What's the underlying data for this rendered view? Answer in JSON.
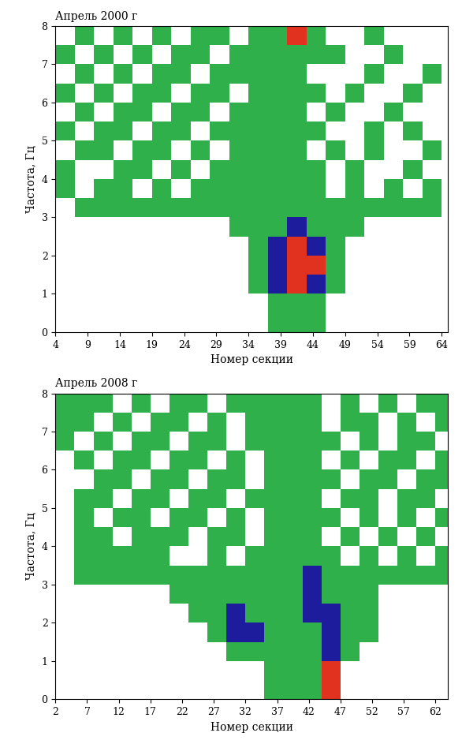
{
  "chart_data": [
    {
      "type": "heatmap",
      "title": "Апрель 2000 г",
      "x_label": "Номер секции",
      "y_label": "Частота, Гц",
      "xlim": [
        4,
        65
      ],
      "ylim": [
        0,
        8
      ],
      "xticks": [
        4,
        9,
        14,
        19,
        24,
        29,
        34,
        39,
        44,
        49,
        54,
        59,
        64
      ],
      "yticks": [
        0,
        1,
        2,
        3,
        4,
        5,
        6,
        7,
        8
      ],
      "grid": false,
      "colors": [
        "#ffffff",
        "#2fb04a",
        "#1c1c9c",
        "#e0321e"
      ],
      "x_edges": [
        4,
        7,
        10,
        13,
        16,
        19,
        22,
        25,
        28,
        31,
        34,
        37,
        40,
        43,
        46,
        49,
        52,
        55,
        58,
        61,
        64
      ],
      "y_edges": [
        0,
        0.5,
        1,
        1.5,
        2,
        2.5,
        3,
        3.5,
        4,
        4.5,
        5,
        5.5,
        6,
        6.5,
        7,
        7.5,
        8
      ],
      "cells": [
        [
          0,
          0,
          0,
          0,
          0,
          0,
          0,
          0,
          0,
          0,
          0,
          1,
          1,
          1,
          0,
          0,
          0,
          0,
          0,
          0
        ],
        [
          0,
          0,
          0,
          0,
          0,
          0,
          0,
          0,
          0,
          0,
          0,
          1,
          1,
          1,
          0,
          0,
          0,
          0,
          0,
          0
        ],
        [
          0,
          0,
          0,
          0,
          0,
          0,
          0,
          0,
          0,
          0,
          1,
          2,
          3,
          2,
          1,
          0,
          0,
          0,
          0,
          0
        ],
        [
          0,
          0,
          0,
          0,
          0,
          0,
          0,
          0,
          0,
          0,
          1,
          2,
          3,
          3,
          1,
          0,
          0,
          0,
          0,
          0
        ],
        [
          0,
          0,
          0,
          0,
          0,
          0,
          0,
          0,
          0,
          0,
          1,
          2,
          3,
          2,
          1,
          0,
          0,
          0,
          0,
          0
        ],
        [
          0,
          0,
          0,
          0,
          0,
          0,
          0,
          0,
          0,
          1,
          1,
          1,
          2,
          1,
          1,
          1,
          0,
          0,
          0,
          0
        ],
        [
          0,
          1,
          1,
          1,
          1,
          1,
          1,
          1,
          1,
          1,
          1,
          1,
          1,
          1,
          1,
          1,
          1,
          1,
          1,
          1
        ],
        [
          1,
          0,
          1,
          1,
          0,
          1,
          0,
          1,
          1,
          1,
          1,
          1,
          1,
          1,
          0,
          1,
          0,
          1,
          0,
          1
        ],
        [
          1,
          0,
          0,
          1,
          1,
          0,
          1,
          0,
          1,
          1,
          1,
          1,
          1,
          1,
          0,
          1,
          0,
          0,
          1,
          0
        ],
        [
          0,
          1,
          1,
          0,
          1,
          1,
          0,
          1,
          0,
          1,
          1,
          1,
          1,
          0,
          1,
          0,
          1,
          0,
          0,
          1
        ],
        [
          1,
          0,
          1,
          1,
          0,
          1,
          1,
          0,
          1,
          1,
          1,
          1,
          1,
          1,
          0,
          0,
          1,
          0,
          1,
          0
        ],
        [
          0,
          1,
          0,
          1,
          1,
          0,
          1,
          1,
          0,
          1,
          1,
          1,
          1,
          0,
          1,
          0,
          0,
          1,
          0,
          0
        ],
        [
          1,
          0,
          1,
          0,
          1,
          1,
          0,
          1,
          1,
          0,
          1,
          1,
          1,
          1,
          0,
          1,
          0,
          0,
          1,
          0
        ],
        [
          0,
          1,
          0,
          1,
          0,
          1,
          1,
          0,
          1,
          1,
          1,
          1,
          1,
          0,
          0,
          0,
          1,
          0,
          0,
          1
        ],
        [
          1,
          0,
          1,
          0,
          1,
          0,
          1,
          1,
          0,
          1,
          1,
          1,
          1,
          1,
          1,
          0,
          0,
          1,
          0,
          0
        ],
        [
          0,
          1,
          0,
          1,
          0,
          1,
          0,
          1,
          1,
          0,
          1,
          1,
          3,
          1,
          0,
          0,
          1,
          0,
          0,
          0
        ]
      ]
    },
    {
      "type": "heatmap",
      "title": "Апрель 2008 г",
      "x_label": "Номер секции",
      "y_label": "Частота, Гц",
      "xlim": [
        2,
        64
      ],
      "ylim": [
        0,
        8
      ],
      "xticks": [
        2,
        7,
        12,
        17,
        22,
        27,
        32,
        37,
        42,
        47,
        52,
        57,
        62
      ],
      "yticks": [
        0,
        1,
        2,
        3,
        4,
        5,
        6,
        7,
        8
      ],
      "grid": false,
      "colors": [
        "#ffffff",
        "#2fb04a",
        "#1c1c9c",
        "#e0321e"
      ],
      "x_edges": [
        2,
        5,
        8,
        11,
        14,
        17,
        20,
        23,
        26,
        29,
        32,
        35,
        38,
        41,
        44,
        47,
        50,
        53,
        56,
        59,
        62,
        65
      ],
      "y_edges": [
        0,
        0.5,
        1,
        1.5,
        2,
        2.5,
        3,
        3.5,
        4,
        4.5,
        5,
        5.5,
        6,
        6.5,
        7,
        7.5,
        8
      ],
      "cells": [
        [
          0,
          0,
          0,
          0,
          0,
          0,
          0,
          0,
          0,
          0,
          0,
          1,
          1,
          1,
          3,
          0,
          0,
          0,
          0,
          0,
          0
        ],
        [
          0,
          0,
          0,
          0,
          0,
          0,
          0,
          0,
          0,
          0,
          0,
          1,
          1,
          1,
          3,
          0,
          0,
          0,
          0,
          0,
          0
        ],
        [
          0,
          0,
          0,
          0,
          0,
          0,
          0,
          0,
          0,
          1,
          1,
          1,
          1,
          1,
          2,
          1,
          0,
          0,
          0,
          0,
          0
        ],
        [
          0,
          0,
          0,
          0,
          0,
          0,
          0,
          0,
          1,
          2,
          2,
          1,
          1,
          1,
          2,
          1,
          1,
          0,
          0,
          0,
          0
        ],
        [
          0,
          0,
          0,
          0,
          0,
          0,
          0,
          1,
          1,
          2,
          1,
          1,
          1,
          2,
          2,
          1,
          1,
          0,
          0,
          0,
          0
        ],
        [
          0,
          0,
          0,
          0,
          0,
          0,
          1,
          1,
          1,
          1,
          1,
          1,
          1,
          2,
          1,
          1,
          1,
          0,
          0,
          0,
          0
        ],
        [
          0,
          1,
          1,
          1,
          1,
          1,
          1,
          1,
          1,
          1,
          1,
          1,
          1,
          2,
          1,
          1,
          1,
          1,
          1,
          1,
          1
        ],
        [
          0,
          1,
          1,
          1,
          1,
          1,
          0,
          0,
          1,
          0,
          1,
          1,
          1,
          1,
          1,
          0,
          1,
          0,
          1,
          0,
          1
        ],
        [
          0,
          1,
          1,
          0,
          1,
          1,
          1,
          0,
          1,
          1,
          0,
          1,
          1,
          1,
          0,
          1,
          0,
          1,
          0,
          1,
          0
        ],
        [
          0,
          1,
          0,
          1,
          1,
          0,
          1,
          1,
          0,
          1,
          0,
          1,
          1,
          1,
          1,
          0,
          1,
          0,
          1,
          0,
          1
        ],
        [
          0,
          1,
          1,
          0,
          1,
          1,
          0,
          1,
          1,
          0,
          1,
          1,
          1,
          1,
          0,
          1,
          1,
          0,
          1,
          1,
          0
        ],
        [
          0,
          0,
          1,
          1,
          0,
          1,
          1,
          0,
          1,
          1,
          0,
          1,
          1,
          1,
          1,
          0,
          1,
          1,
          0,
          1,
          1
        ],
        [
          0,
          1,
          0,
          1,
          1,
          0,
          1,
          1,
          0,
          1,
          0,
          1,
          1,
          1,
          0,
          1,
          0,
          1,
          1,
          0,
          1
        ],
        [
          1,
          0,
          1,
          0,
          1,
          1,
          0,
          1,
          1,
          0,
          1,
          1,
          1,
          1,
          1,
          0,
          1,
          0,
          1,
          1,
          0
        ],
        [
          1,
          1,
          0,
          1,
          0,
          1,
          1,
          0,
          1,
          0,
          1,
          1,
          1,
          1,
          0,
          1,
          1,
          0,
          1,
          0,
          1
        ],
        [
          1,
          1,
          1,
          0,
          1,
          0,
          1,
          1,
          0,
          1,
          1,
          1,
          1,
          1,
          0,
          1,
          0,
          1,
          0,
          1,
          1
        ]
      ]
    }
  ]
}
